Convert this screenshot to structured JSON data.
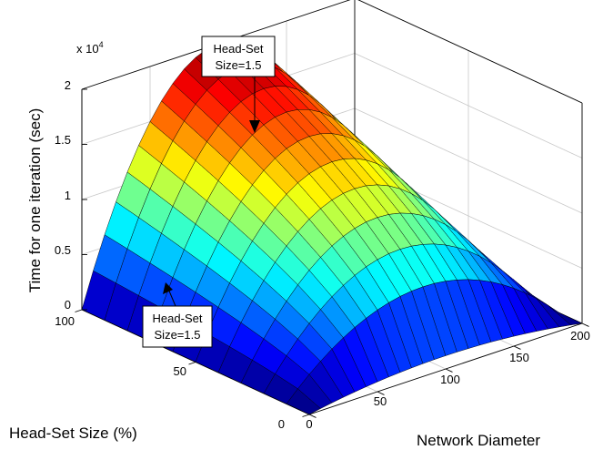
{
  "chart_data": {
    "type": "surface",
    "title": "",
    "xlabel": "Network Diameter",
    "ylabel": "Head-Set Size (%)",
    "zlabel": "Time for one iteration (sec)",
    "z_exponent_label": "x 10",
    "z_exponent_power": "4",
    "xlim": [
      0,
      200
    ],
    "ylim": [
      0,
      100
    ],
    "zlim": [
      0,
      20000
    ],
    "x_ticks": [
      "0",
      "50",
      "100",
      "150",
      "200"
    ],
    "y_ticks": [
      "0",
      "50",
      "100"
    ],
    "z_ticks": [
      "0",
      "0.5",
      "1",
      "1.5",
      "2"
    ],
    "colormap": "jet",
    "grid": true,
    "surface_peak_value": 20000,
    "surface_peak_x": 100,
    "annotations": [
      {
        "line1": "Head-Set",
        "line2": "Size=1.5",
        "target": "upper surface"
      },
      {
        "line1": "Head-Set",
        "line2": "Size=1.5",
        "target": "lower surface"
      }
    ]
  }
}
